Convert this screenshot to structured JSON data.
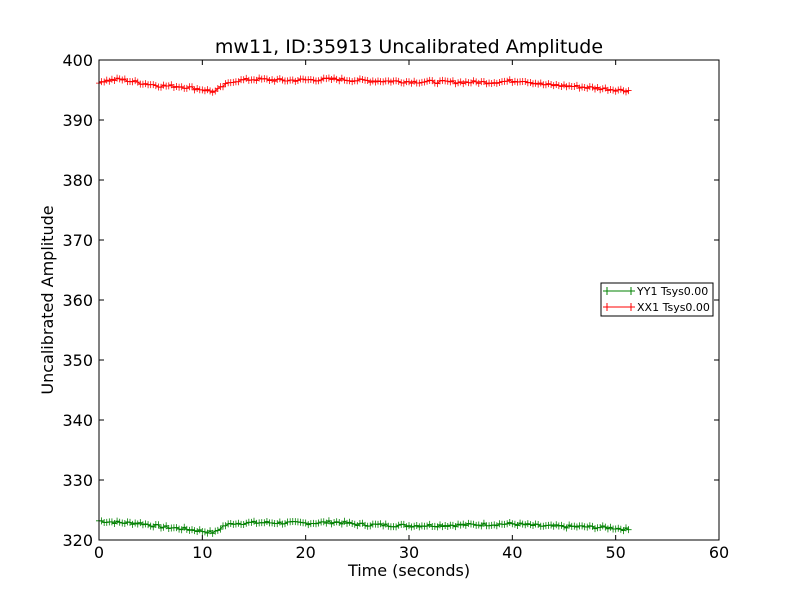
{
  "chart_data": {
    "type": "line",
    "title": "mw11, ID:35913 Uncalibrated Amplitude",
    "xlabel": "Time (seconds)",
    "ylabel": "Uncalibrated Amplitude",
    "xlim": [
      0,
      60
    ],
    "ylim": [
      320,
      400
    ],
    "xticks": [
      0,
      10,
      20,
      30,
      40,
      50,
      60
    ],
    "yticks": [
      320,
      330,
      340,
      350,
      360,
      370,
      380,
      390,
      400
    ],
    "grid": false,
    "legend_position": "center-right",
    "marker": "+",
    "sample_step": 0.25,
    "series": [
      {
        "name": "YY1 Tsys0.00",
        "color": "#008000",
        "keypoints": [
          [
            0,
            323.2
          ],
          [
            2,
            322.9
          ],
          [
            4,
            322.8
          ],
          [
            6,
            322.2
          ],
          [
            8,
            321.9
          ],
          [
            10,
            321.5
          ],
          [
            11.2,
            321.2
          ],
          [
            12,
            322.3
          ],
          [
            13,
            322.8
          ],
          [
            16,
            322.9
          ],
          [
            20,
            322.8
          ],
          [
            23,
            323.0
          ],
          [
            25,
            322.6
          ],
          [
            30,
            322.4
          ],
          [
            35,
            322.5
          ],
          [
            40,
            322.7
          ],
          [
            43,
            322.3
          ],
          [
            47,
            322.2
          ],
          [
            50,
            322.0
          ],
          [
            51.3,
            321.7
          ]
        ]
      },
      {
        "name": "XX1 Tsys0.00",
        "color": "#ff0000",
        "keypoints": [
          [
            0,
            396.4
          ],
          [
            2,
            396.8
          ],
          [
            4,
            396.2
          ],
          [
            6,
            395.7
          ],
          [
            8,
            395.6
          ],
          [
            10,
            395.1
          ],
          [
            11.2,
            394.7
          ],
          [
            12,
            395.6
          ],
          [
            13,
            396.5
          ],
          [
            15,
            396.8
          ],
          [
            18,
            396.6
          ],
          [
            23,
            396.8
          ],
          [
            25,
            396.6
          ],
          [
            30,
            396.4
          ],
          [
            35,
            396.3
          ],
          [
            38,
            396.3
          ],
          [
            41,
            396.6
          ],
          [
            43,
            395.9
          ],
          [
            46,
            395.6
          ],
          [
            49,
            395.2
          ],
          [
            51.3,
            394.9
          ]
        ]
      }
    ]
  }
}
